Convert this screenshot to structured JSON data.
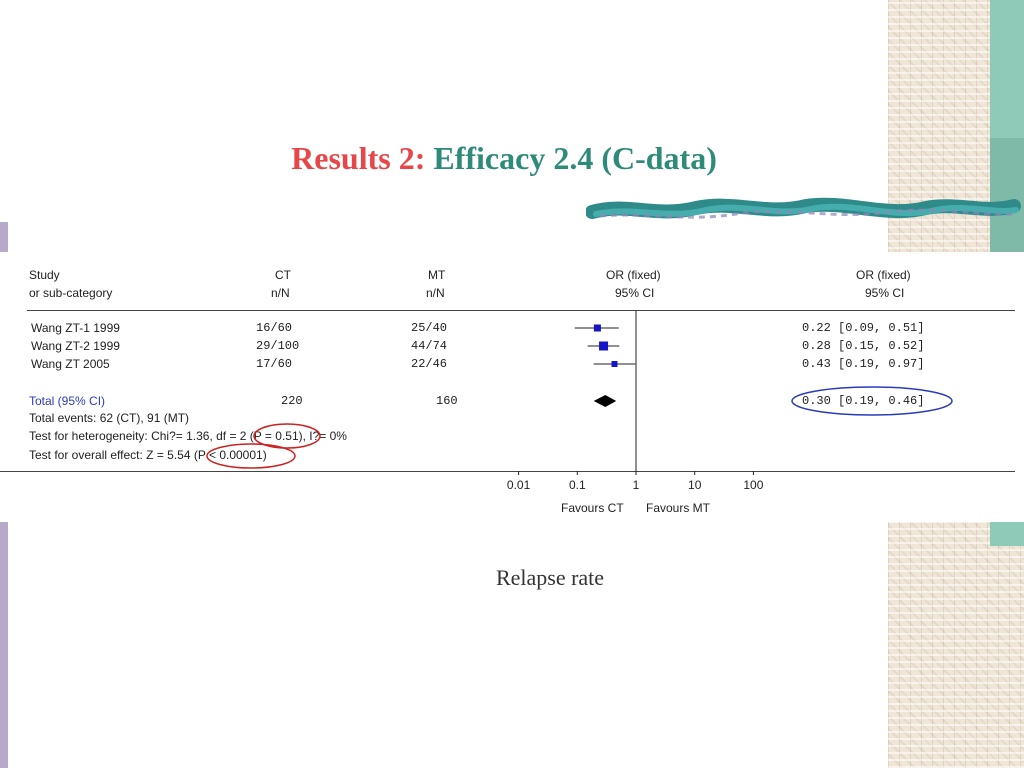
{
  "slide": {
    "title_lead": "Results 2:",
    "title_rest": "Efficacy 2.4 (C-data)",
    "caption": "Relapse rate"
  },
  "table": {
    "headers": {
      "study": [
        "Study",
        "or sub-category"
      ],
      "ct": [
        "CT",
        "n/N"
      ],
      "mt": [
        "MT",
        "n/N"
      ],
      "plot": [
        "OR (fixed)",
        "95% CI"
      ],
      "or": [
        "OR (fixed)",
        "95% CI"
      ]
    },
    "rows": [
      {
        "study": "Wang ZT-1 1999",
        "ct": "16/60",
        "mt": "25/40",
        "or_ci": "0.22 [0.09, 0.51]"
      },
      {
        "study": "Wang ZT-2 1999",
        "ct": "29/100",
        "mt": "44/74",
        "or_ci": "0.28 [0.15, 0.52]"
      },
      {
        "study": "Wang ZT 2005",
        "ct": "17/60",
        "mt": "22/46",
        "or_ci": "0.43 [0.19, 0.97]"
      }
    ],
    "total": {
      "label": "Total (95% CI)",
      "ct": "220",
      "mt": "160",
      "or_ci": "0.30 [0.19, 0.46]"
    },
    "notes": [
      "Total events: 62 (CT), 91 (MT)",
      "Test for heterogeneity: Chi?= 1.36, df = 2 (P = 0.51), I?= 0%",
      "Test for overall effect: Z = 5.54 (P < 0.00001)"
    ],
    "favours_left": "Favours CT",
    "favours_right": "Favours MT"
  },
  "chart_data": {
    "type": "forest",
    "scale": "log",
    "xlim": [
      0.01,
      100
    ],
    "x_ticks": [
      0.01,
      0.1,
      1,
      10,
      100
    ],
    "x_tick_labels": [
      "0.01",
      "0.1",
      "1",
      "10",
      "100"
    ],
    "reference_line": 1,
    "studies": [
      {
        "name": "Wang ZT-1 1999",
        "or": 0.22,
        "lo": 0.09,
        "hi": 0.51
      },
      {
        "name": "Wang ZT-2 1999",
        "or": 0.28,
        "lo": 0.15,
        "hi": 0.52
      },
      {
        "name": "Wang ZT 2005",
        "or": 0.43,
        "lo": 0.19,
        "hi": 0.97
      }
    ],
    "total": {
      "name": "Total (95% CI)",
      "or": 0.3,
      "lo": 0.19,
      "hi": 0.46
    },
    "colors": {
      "marker": "#1515c8",
      "total": "#000000",
      "highlight": "#cc2222",
      "highlight_blue": "#2b3bbd"
    }
  }
}
